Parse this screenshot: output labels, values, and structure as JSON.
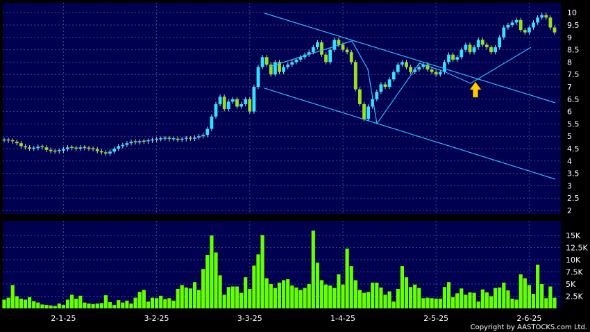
{
  "colors": {
    "background": "#000000",
    "panel": "#000050",
    "grid": "#3a4a8a",
    "up_candle": "#33e0ff",
    "down_candle": "#99e020",
    "volume": "#66ff00",
    "trendline": "#33bbff",
    "arrow": "#ffcc00",
    "text": "#ffffff"
  },
  "copyright": "Copyright by AASTOCKS.com Ltd.",
  "chart_data": [
    {
      "type": "candlestick",
      "y_ticks": [
        "10",
        "9.5",
        "9",
        "8.5",
        "8",
        "7.5",
        "7",
        "6.5",
        "6",
        "5.5",
        "5",
        "4.5",
        "4",
        "3.5",
        "3",
        "2.5",
        "2"
      ],
      "ylim": [
        1.95,
        10.3
      ],
      "x_ticks": [
        "2-1-25",
        "3-2-25",
        "3-3-25",
        "1-4-25",
        "2-5-25",
        "2-6-25"
      ],
      "x_tick_index": [
        14,
        36,
        58,
        80,
        102,
        124
      ],
      "n_bars": 131,
      "close": [
        4.85,
        4.82,
        4.78,
        4.72,
        4.6,
        4.55,
        4.5,
        4.52,
        4.58,
        4.55,
        4.45,
        4.4,
        4.38,
        4.42,
        4.48,
        4.55,
        4.52,
        4.5,
        4.55,
        4.52,
        4.5,
        4.48,
        4.4,
        4.35,
        4.3,
        4.38,
        4.5,
        4.6,
        4.65,
        4.72,
        4.78,
        4.75,
        4.8,
        4.78,
        4.82,
        4.85,
        4.88,
        4.9,
        4.92,
        4.88,
        4.9,
        4.85,
        4.88,
        4.92,
        4.9,
        4.95,
        5.0,
        5.05,
        5.3,
        5.8,
        6.3,
        6.6,
        6.1,
        6.4,
        6.5,
        6.2,
        6.3,
        6.5,
        6.0,
        7.0,
        7.8,
        8.2,
        7.9,
        7.5,
        8.0,
        7.6,
        7.8,
        7.9,
        8.0,
        8.1,
        8.2,
        8.3,
        8.4,
        8.6,
        8.8,
        8.3,
        8.0,
        8.5,
        8.9,
        8.7,
        8.5,
        8.4,
        8.0,
        6.9,
        6.3,
        5.7,
        6.2,
        6.5,
        6.8,
        7.1,
        7.0,
        7.3,
        7.6,
        7.9,
        8.0,
        7.8,
        7.6,
        7.7,
        7.8,
        7.9,
        7.7,
        7.6,
        7.5,
        7.6,
        8.0,
        8.3,
        8.1,
        8.2,
        8.5,
        8.7,
        8.4,
        8.6,
        8.9,
        8.7,
        8.6,
        8.4,
        8.6,
        9.0,
        9.4,
        9.5,
        9.6,
        9.7,
        9.3,
        9.2,
        9.4,
        9.6,
        9.8,
        9.9,
        9.8,
        9.4,
        9.2
      ],
      "volume": [
        1800,
        2200,
        4800,
        2500,
        2000,
        1800,
        2300,
        1500,
        1200,
        800,
        700,
        600,
        500,
        1000,
        700,
        1800,
        2800,
        2000,
        2600,
        1200,
        1000,
        900,
        1000,
        1100,
        2700,
        1300,
        700,
        1700,
        1200,
        1600,
        1000,
        2200,
        3400,
        3800,
        1400,
        2200,
        2100,
        2600,
        1900,
        2100,
        1600,
        4000,
        4800,
        4300,
        4100,
        5400,
        3800,
        8100,
        11000,
        15000,
        11500,
        6800,
        2800,
        4400,
        4500,
        4500,
        3200,
        6400,
        4000,
        8800,
        11100,
        15100,
        6200,
        5000,
        4200,
        5300,
        5800,
        6000,
        4700,
        4300,
        3800,
        4200,
        5000,
        16000,
        9400,
        5800,
        4900,
        4700,
        4200,
        7000,
        4900,
        12300,
        8700,
        5800,
        3800,
        3200,
        3400,
        5300,
        5300,
        4300,
        2800,
        3500,
        1400,
        4000,
        8700,
        6400,
        4400,
        4900,
        4200,
        2100,
        2200,
        2100,
        2000,
        2000,
        4400,
        5400,
        2300,
        3100,
        4100,
        2800,
        3300,
        3200,
        1400,
        3900,
        3300,
        2500,
        4200,
        4300,
        5300,
        3700,
        2000,
        1800,
        7000,
        6200,
        4800,
        3000,
        9000,
        5000,
        2100,
        4500,
        2200
      ]
    }
  ]
}
